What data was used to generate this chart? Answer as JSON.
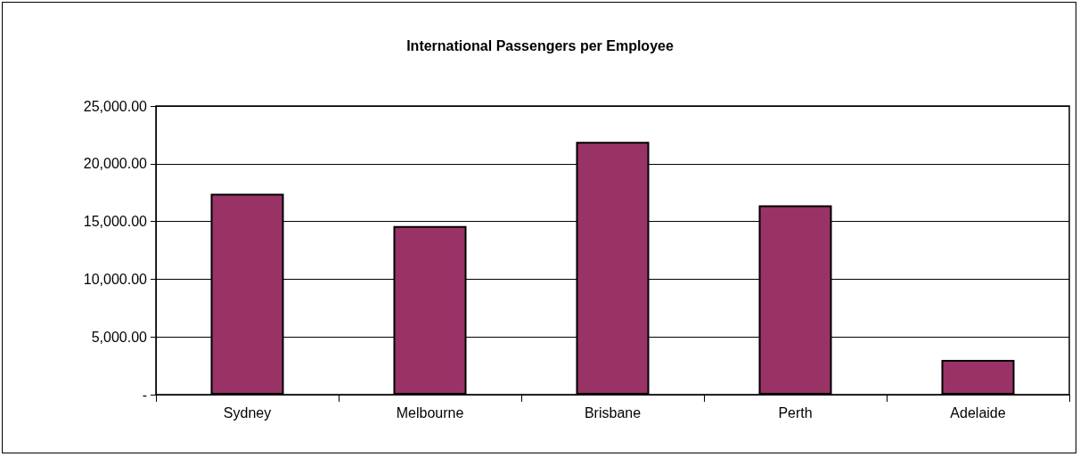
{
  "chart_data": {
    "type": "bar",
    "title": "International Passengers per Employee",
    "categories": [
      "Sydney",
      "Melbourne",
      "Brisbane",
      "Perth",
      "Adelaide"
    ],
    "values": [
      17400,
      14600,
      21900,
      16400,
      3000
    ],
    "color": "#993366",
    "ylim": [
      0,
      25000
    ],
    "yticks": [
      {
        "value": 0,
        "label": "-"
      },
      {
        "value": 5000,
        "label": "5,000.00"
      },
      {
        "value": 10000,
        "label": "10,000.00"
      },
      {
        "value": 15000,
        "label": "15,000.00"
      },
      {
        "value": 20000,
        "label": "20,000.00"
      },
      {
        "value": 25000,
        "label": "25,000.00"
      }
    ],
    "grid": "y"
  }
}
